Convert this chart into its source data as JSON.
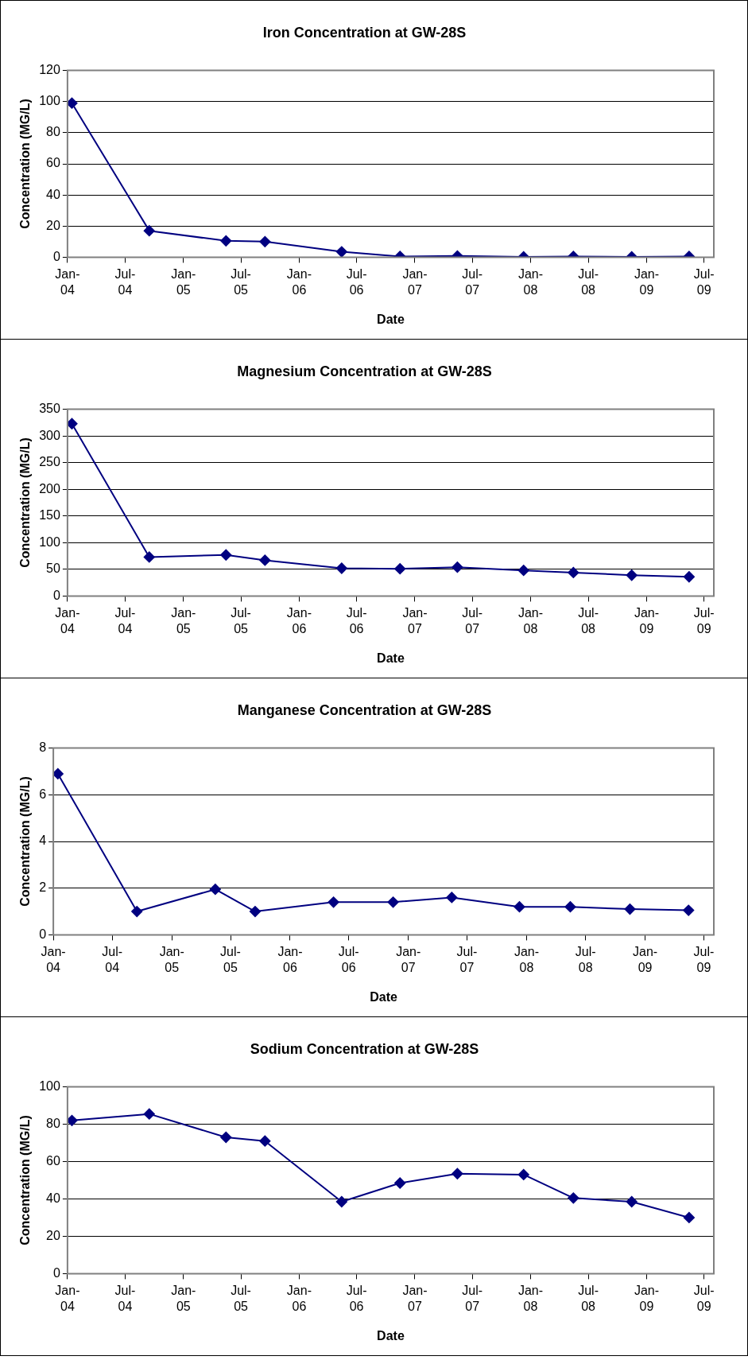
{
  "chart_data": [
    {
      "type": "line",
      "title": "Iron Concentration at GW-28S",
      "xlabel": "Date",
      "ylabel": "Concentration (MG/L)",
      "x": [
        "2004-01-15",
        "2004-09-15",
        "2005-05-15",
        "2005-09-15",
        "2006-05-15",
        "2006-11-15",
        "2007-05-15",
        "2007-12-10",
        "2008-05-15",
        "2008-11-15",
        "2009-05-15"
      ],
      "series": [
        {
          "color": "#000080",
          "values": [
            99,
            17,
            10.5,
            10,
            3.5,
            0.5,
            0.8,
            0.2,
            0.5,
            0.2,
            0.5
          ]
        }
      ],
      "xlim": [
        "2004-01-01",
        "2009-08-01"
      ],
      "xticks": [
        {
          "value": "2004-01-01",
          "label": "Jan-04"
        },
        {
          "value": "2004-07-01",
          "label": "Jul-04"
        },
        {
          "value": "2005-01-01",
          "label": "Jan-05"
        },
        {
          "value": "2005-07-01",
          "label": "Jul-05"
        },
        {
          "value": "2006-01-01",
          "label": "Jan-06"
        },
        {
          "value": "2006-07-01",
          "label": "Jul-06"
        },
        {
          "value": "2007-01-01",
          "label": "Jan-07"
        },
        {
          "value": "2007-07-01",
          "label": "Jul-07"
        },
        {
          "value": "2008-01-01",
          "label": "Jan-08"
        },
        {
          "value": "2008-07-01",
          "label": "Jul-08"
        },
        {
          "value": "2009-01-01",
          "label": "Jan-09"
        },
        {
          "value": "2009-07-01",
          "label": "Jul-09"
        }
      ],
      "ylim": [
        0,
        120
      ],
      "yticks": [
        0,
        20,
        40,
        60,
        80,
        100,
        120
      ],
      "grid": "y",
      "legend": false,
      "marker": "diamond",
      "line_style": "solid"
    },
    {
      "type": "line",
      "title": "Magnesium Concentration at GW-28S",
      "xlabel": "Date",
      "ylabel": "Concentration (MG/L)",
      "x": [
        "2004-01-15",
        "2004-09-15",
        "2005-05-15",
        "2005-09-15",
        "2006-05-15",
        "2006-11-15",
        "2007-05-15",
        "2007-12-10",
        "2008-05-15",
        "2008-11-15",
        "2009-05-15"
      ],
      "series": [
        {
          "color": "#000080",
          "values": [
            323,
            73,
            77,
            67,
            52,
            51,
            54,
            48,
            44,
            39,
            36
          ]
        }
      ],
      "xlim": [
        "2004-01-01",
        "2009-08-01"
      ],
      "xticks": [
        {
          "value": "2004-01-01",
          "label": "Jan-04"
        },
        {
          "value": "2004-07-01",
          "label": "Jul-04"
        },
        {
          "value": "2005-01-01",
          "label": "Jan-05"
        },
        {
          "value": "2005-07-01",
          "label": "Jul-05"
        },
        {
          "value": "2006-01-01",
          "label": "Jan-06"
        },
        {
          "value": "2006-07-01",
          "label": "Jul-06"
        },
        {
          "value": "2007-01-01",
          "label": "Jan-07"
        },
        {
          "value": "2007-07-01",
          "label": "Jul-07"
        },
        {
          "value": "2008-01-01",
          "label": "Jan-08"
        },
        {
          "value": "2008-07-01",
          "label": "Jul-08"
        },
        {
          "value": "2009-01-01",
          "label": "Jan-09"
        },
        {
          "value": "2009-07-01",
          "label": "Jul-09"
        }
      ],
      "ylim": [
        0,
        350
      ],
      "yticks": [
        0,
        50,
        100,
        150,
        200,
        250,
        300,
        350
      ],
      "grid": "y",
      "legend": false,
      "marker": "diamond",
      "line_style": "solid"
    },
    {
      "type": "line",
      "title": "Manganese Concentration at GW-28S",
      "xlabel": "Date",
      "ylabel": "Concentration (MG/L)",
      "x": [
        "2004-01-15",
        "2004-09-15",
        "2005-05-15",
        "2005-09-15",
        "2006-05-15",
        "2006-11-15",
        "2007-05-15",
        "2007-12-10",
        "2008-05-15",
        "2008-11-15",
        "2009-05-15"
      ],
      "series": [
        {
          "color": "#000080",
          "values": [
            6.9,
            1.0,
            1.95,
            1.0,
            1.4,
            1.4,
            1.6,
            1.2,
            1.2,
            1.1,
            1.05
          ]
        }
      ],
      "xlim": [
        "2004-01-01",
        "2009-08-01"
      ],
      "xticks": [
        {
          "value": "2004-01-01",
          "label": "Jan-04"
        },
        {
          "value": "2004-07-01",
          "label": "Jul-04"
        },
        {
          "value": "2005-01-01",
          "label": "Jan-05"
        },
        {
          "value": "2005-07-01",
          "label": "Jul-05"
        },
        {
          "value": "2006-01-01",
          "label": "Jan-06"
        },
        {
          "value": "2006-07-01",
          "label": "Jul-06"
        },
        {
          "value": "2007-01-01",
          "label": "Jan-07"
        },
        {
          "value": "2007-07-01",
          "label": "Jul-07"
        },
        {
          "value": "2008-01-01",
          "label": "Jan-08"
        },
        {
          "value": "2008-07-01",
          "label": "Jul-08"
        },
        {
          "value": "2009-01-01",
          "label": "Jan-09"
        },
        {
          "value": "2009-07-01",
          "label": "Jul-09"
        }
      ],
      "ylim": [
        0,
        8
      ],
      "yticks": [
        0,
        2,
        4,
        6,
        8
      ],
      "grid": "y",
      "legend": false,
      "marker": "diamond",
      "line_style": "solid"
    },
    {
      "type": "line",
      "title": "Sodium Concentration at GW-28S",
      "xlabel": "Date",
      "ylabel": "Concentration (MG/L)",
      "x": [
        "2004-01-15",
        "2004-09-15",
        "2005-05-15",
        "2005-09-15",
        "2006-05-15",
        "2006-11-15",
        "2007-05-15",
        "2007-12-10",
        "2008-05-15",
        "2008-11-15",
        "2009-05-15"
      ],
      "series": [
        {
          "color": "#000080",
          "values": [
            82,
            85.5,
            73,
            71,
            38.5,
            48.5,
            53.5,
            53,
            40.5,
            38.5,
            30
          ]
        }
      ],
      "xlim": [
        "2004-01-01",
        "2009-08-01"
      ],
      "xticks": [
        {
          "value": "2004-01-01",
          "label": "Jan-04"
        },
        {
          "value": "2004-07-01",
          "label": "Jul-04"
        },
        {
          "value": "2005-01-01",
          "label": "Jan-05"
        },
        {
          "value": "2005-07-01",
          "label": "Jul-05"
        },
        {
          "value": "2006-01-01",
          "label": "Jan-06"
        },
        {
          "value": "2006-07-01",
          "label": "Jul-06"
        },
        {
          "value": "2007-01-01",
          "label": "Jan-07"
        },
        {
          "value": "2007-07-01",
          "label": "Jul-07"
        },
        {
          "value": "2008-01-01",
          "label": "Jan-08"
        },
        {
          "value": "2008-07-01",
          "label": "Jul-08"
        },
        {
          "value": "2009-01-01",
          "label": "Jan-09"
        },
        {
          "value": "2009-07-01",
          "label": "Jul-09"
        }
      ],
      "ylim": [
        0,
        100
      ],
      "yticks": [
        0,
        20,
        40,
        60,
        80,
        100
      ],
      "grid": "y",
      "legend": false,
      "marker": "diamond",
      "line_style": "solid"
    }
  ]
}
